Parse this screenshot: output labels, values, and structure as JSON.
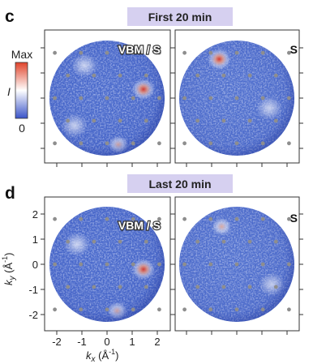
{
  "panels": {
    "c": {
      "label": "c",
      "banner": "First 20 min",
      "left_tag": "VBM / S",
      "right_tag": "S",
      "hotspots_left": [
        {
          "kx": 1.45,
          "ky": 0.35,
          "intensity": 1.0
        },
        {
          "kx": 0.45,
          "ky": -1.85,
          "intensity": 0.55
        },
        {
          "kx": -0.9,
          "ky": 1.3,
          "intensity": 0.3
        },
        {
          "kx": -1.3,
          "ky": -1.1,
          "intensity": 0.3
        }
      ],
      "hotspots_right": [
        {
          "kx": -0.7,
          "ky": 1.55,
          "intensity": 0.9
        },
        {
          "kx": 1.3,
          "ky": -0.4,
          "intensity": 0.35
        }
      ]
    },
    "d": {
      "label": "d",
      "banner": "Last 20 min",
      "left_tag": "VBM / S",
      "right_tag": "S",
      "hotspots_left": [
        {
          "kx": 1.45,
          "ky": -0.2,
          "intensity": 1.0
        },
        {
          "kx": 0.4,
          "ky": -1.85,
          "intensity": 0.55
        },
        {
          "kx": -1.2,
          "ky": 0.8,
          "intensity": 0.3
        }
      ],
      "hotspots_right": [
        {
          "kx": -0.6,
          "ky": 1.5,
          "intensity": 0.6
        },
        {
          "kx": 1.4,
          "ky": -0.8,
          "intensity": 0.3
        }
      ]
    }
  },
  "colorbar": {
    "max_label": "Max",
    "min_label": "0",
    "quantity_label": "I",
    "colors": [
      "#3a54c8",
      "#ffffff",
      "#e0432a"
    ]
  },
  "axes": {
    "x_label_main": "k",
    "x_label_sub": "x",
    "x_unit": " (Å",
    "x_unit_exp": "-1",
    "x_unit_close": ")",
    "y_label_main": "k",
    "y_label_sub": "y",
    "y_unit": " (Å",
    "y_unit_exp": "-1",
    "y_unit_close": ")",
    "x_ticks": [
      "-2",
      "-1",
      "0",
      "1",
      "2"
    ],
    "y_ticks": [
      "2",
      "1",
      "0",
      "-1",
      "-2"
    ]
  },
  "colors": {
    "banner_bg": "#d6d0f0",
    "disk_base": "#4a6acc",
    "dot": "#8e8e8e"
  }
}
